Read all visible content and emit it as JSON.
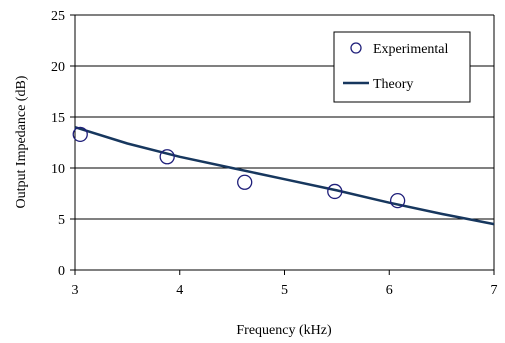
{
  "chart_data": {
    "type": "line",
    "xlabel": "Frequency (kHz)",
    "ylabel": "Output Impedance (dB)",
    "xlim": [
      3,
      7
    ],
    "ylim": [
      0,
      25
    ],
    "x_ticks": [
      "3",
      "4",
      "5",
      "6",
      "7"
    ],
    "y_ticks": [
      "0",
      "5",
      "10",
      "15",
      "20",
      "25"
    ],
    "grid": "horizontal",
    "legend_position": "top-right",
    "colors": {
      "theory": "#17375e",
      "experimental": "#1f1f7a",
      "grid": "#000000"
    },
    "series": [
      {
        "name": "Experimental",
        "kind": "scatter",
        "x": [
          3.05,
          3.88,
          4.62,
          5.48,
          6.08
        ],
        "y": [
          13.3,
          11.1,
          8.6,
          7.7,
          6.8
        ]
      },
      {
        "name": "Theory",
        "kind": "line",
        "x": [
          3.0,
          3.5,
          4.0,
          4.5,
          5.0,
          5.5,
          6.0,
          6.5,
          7.0
        ],
        "y": [
          14.0,
          12.4,
          11.1,
          10.0,
          8.9,
          7.8,
          6.6,
          5.5,
          4.5
        ]
      }
    ]
  }
}
